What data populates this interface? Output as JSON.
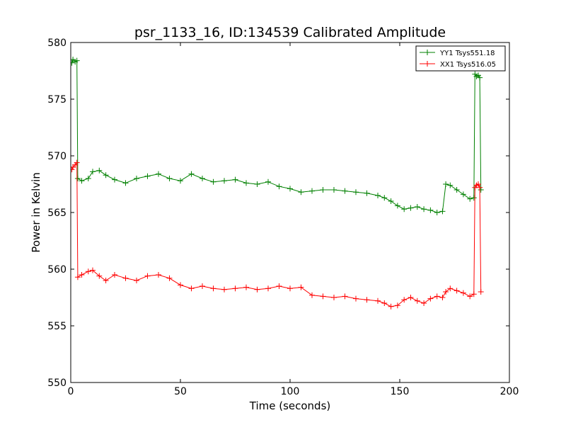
{
  "chart_data": {
    "type": "line",
    "title": "psr_1133_16, ID:134539 Calibrated Amplitude",
    "xlabel": "Time (seconds)",
    "ylabel": "Power in Kelvin",
    "xlim": [
      0,
      200
    ],
    "ylim": [
      550,
      580
    ],
    "xticks": [
      0,
      50,
      100,
      150,
      200
    ],
    "yticks": [
      550,
      555,
      560,
      565,
      570,
      575,
      580
    ],
    "grid": false,
    "legend_position": "top-right",
    "marker": "+",
    "series": [
      {
        "name": "YY1 Tsys551.18",
        "color": "#008000",
        "x": [
          0.5,
          1,
          2,
          2.8,
          3.2,
          5,
          8,
          10,
          13,
          16,
          20,
          25,
          30,
          35,
          40,
          45,
          50,
          55,
          60,
          65,
          70,
          75,
          80,
          85,
          90,
          95,
          100,
          105,
          110,
          115,
          120,
          125,
          130,
          135,
          140,
          143,
          146,
          149,
          152,
          155,
          158,
          161,
          164,
          167,
          169.5,
          171,
          173,
          176,
          179,
          182,
          183.8,
          184.3,
          185,
          185.8,
          186.5,
          187
        ],
        "y": [
          578.2,
          578.5,
          578.3,
          578.4,
          568.0,
          567.8,
          568.0,
          568.6,
          568.7,
          568.3,
          567.9,
          567.6,
          568.0,
          568.2,
          568.4,
          568.0,
          567.8,
          568.4,
          568.0,
          567.7,
          567.8,
          567.9,
          567.6,
          567.5,
          567.7,
          567.3,
          567.1,
          566.8,
          566.9,
          567.0,
          567.0,
          566.9,
          566.8,
          566.7,
          566.5,
          566.3,
          566.0,
          565.6,
          565.3,
          565.4,
          565.5,
          565.3,
          565.2,
          565.0,
          565.1,
          567.5,
          567.4,
          567.0,
          566.6,
          566.2,
          566.3,
          577.2,
          577.0,
          577.1,
          576.9,
          567.0
        ]
      },
      {
        "name": "XX1 Tsys516.05",
        "color": "#ff0000",
        "x": [
          0.5,
          1,
          2,
          2.8,
          3.2,
          5,
          8,
          10,
          13,
          16,
          20,
          25,
          30,
          35,
          40,
          45,
          50,
          55,
          60,
          65,
          70,
          75,
          80,
          85,
          90,
          95,
          100,
          105,
          110,
          115,
          120,
          125,
          130,
          135,
          140,
          143,
          146,
          149,
          152,
          155,
          158,
          161,
          164,
          167,
          169.5,
          171,
          173,
          176,
          179,
          182,
          183.8,
          184.3,
          185,
          185.8,
          186.5,
          187
        ],
        "y": [
          568.8,
          569.0,
          569.2,
          569.4,
          559.3,
          559.5,
          559.8,
          559.9,
          559.4,
          559.0,
          559.5,
          559.2,
          559.0,
          559.4,
          559.5,
          559.2,
          558.6,
          558.3,
          558.5,
          558.3,
          558.2,
          558.3,
          558.4,
          558.2,
          558.3,
          558.5,
          558.3,
          558.4,
          557.7,
          557.6,
          557.5,
          557.6,
          557.4,
          557.3,
          557.2,
          557.0,
          556.7,
          556.8,
          557.3,
          557.5,
          557.2,
          557.0,
          557.4,
          557.6,
          557.5,
          558.0,
          558.3,
          558.1,
          557.9,
          557.6,
          557.8,
          567.2,
          567.4,
          567.5,
          567.2,
          558.0
        ]
      }
    ]
  }
}
